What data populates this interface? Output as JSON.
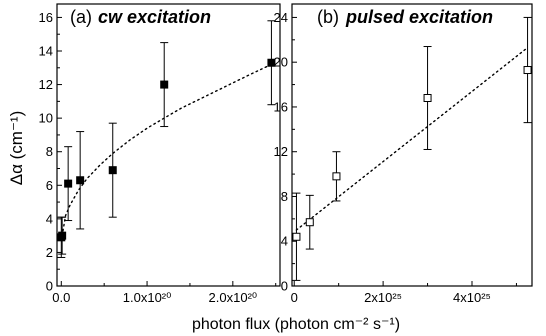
{
  "figure": {
    "ylabel": "Δα (cm⁻¹)",
    "xlabel": "photon flux (photon cm⁻² s⁻¹)"
  },
  "chart_data": [
    {
      "type": "scatter",
      "panel_label": "(a)",
      "title": "cw excitation",
      "marker": "filled-square",
      "color": "#000000",
      "xlim": [
        -5e+18,
        2.55e+20
      ],
      "ylim": [
        0,
        16.8
      ],
      "xticks": [
        {
          "value": 0,
          "label": "0.0"
        },
        {
          "value": 1e+20,
          "label": "1.0x10²⁰"
        },
        {
          "value": 2e+20,
          "label": "2.0x10²⁰"
        }
      ],
      "yticks": [
        {
          "value": 0,
          "label": "0"
        },
        {
          "value": 2,
          "label": "2"
        },
        {
          "value": 4,
          "label": "4"
        },
        {
          "value": 6,
          "label": "6"
        },
        {
          "value": 8,
          "label": "8"
        },
        {
          "value": 10,
          "label": "10"
        },
        {
          "value": 12,
          "label": "12"
        },
        {
          "value": 14,
          "label": "14"
        },
        {
          "value": 16,
          "label": "16"
        }
      ],
      "points": [
        {
          "x": 0.0,
          "y": 2.9,
          "err_low": 1.2,
          "err_high": 1.2
        },
        {
          "x": 1e+18,
          "y": 3.0,
          "err_low": 1.1,
          "err_high": 1.1
        },
        {
          "x": 8e+18,
          "y": 6.1,
          "err_low": 2.2,
          "err_high": 2.2
        },
        {
          "x": 2.2e+19,
          "y": 6.3,
          "err_low": 2.9,
          "err_high": 2.9
        },
        {
          "x": 6e+19,
          "y": 6.9,
          "err_low": 2.8,
          "err_high": 2.8
        },
        {
          "x": 1.2e+20,
          "y": 12.0,
          "err_low": 2.5,
          "err_high": 2.5
        },
        {
          "x": 2.45e+20,
          "y": 13.3,
          "err_low": 2.5,
          "err_high": 2.5
        }
      ],
      "fit": {
        "style": "dotted",
        "x": [
          0,
          5e+18,
          1e+19,
          2e+19,
          3e+19,
          4.5e+19,
          6e+19,
          8e+19,
          1e+20,
          1.2e+20,
          1.4e+20,
          1.6e+20,
          1.8e+20,
          2e+20,
          2.2e+20,
          2.45e+20
        ],
        "y": [
          2.7,
          4.2,
          4.8,
          5.7,
          6.4,
          7.2,
          7.9,
          8.7,
          9.4,
          10.0,
          10.6,
          11.1,
          11.6,
          12.1,
          12.6,
          13.2
        ]
      }
    },
    {
      "type": "scatter",
      "panel_label": "(b)",
      "title": "pulsed excitation",
      "marker": "open-square",
      "color": "#000000",
      "xlim": [
        -5e+23,
        5.35e+25
      ],
      "ylim": [
        0,
        25.2
      ],
      "xticks": [
        {
          "value": 0,
          "label": "0"
        },
        {
          "value": 2e+25,
          "label": "2x10²⁵"
        },
        {
          "value": 4e+25,
          "label": "4x10²⁵"
        }
      ],
      "yticks": [
        {
          "value": 0,
          "label": "0"
        },
        {
          "value": 4,
          "label": "4"
        },
        {
          "value": 8,
          "label": "8"
        },
        {
          "value": 12,
          "label": "12"
        },
        {
          "value": 16,
          "label": "16"
        },
        {
          "value": 20,
          "label": "20"
        },
        {
          "value": 24,
          "label": "24"
        }
      ],
      "points": [
        {
          "x": 5e+23,
          "y": 4.4,
          "err_low": 3.9,
          "err_high": 3.9
        },
        {
          "x": 3.5e+24,
          "y": 5.7,
          "err_low": 2.4,
          "err_high": 2.4
        },
        {
          "x": 9.5e+24,
          "y": 9.8,
          "err_low": 2.2,
          "err_high": 2.2
        },
        {
          "x": 3e+25,
          "y": 16.8,
          "err_low": 4.6,
          "err_high": 4.6
        },
        {
          "x": 5.25e+25,
          "y": 19.3,
          "err_low": 4.7,
          "err_high": 4.7
        }
      ],
      "fit": {
        "style": "dotted",
        "x": [
          5e+23,
          5.25e+25
        ],
        "y": [
          5.0,
          21.3
        ]
      }
    }
  ]
}
